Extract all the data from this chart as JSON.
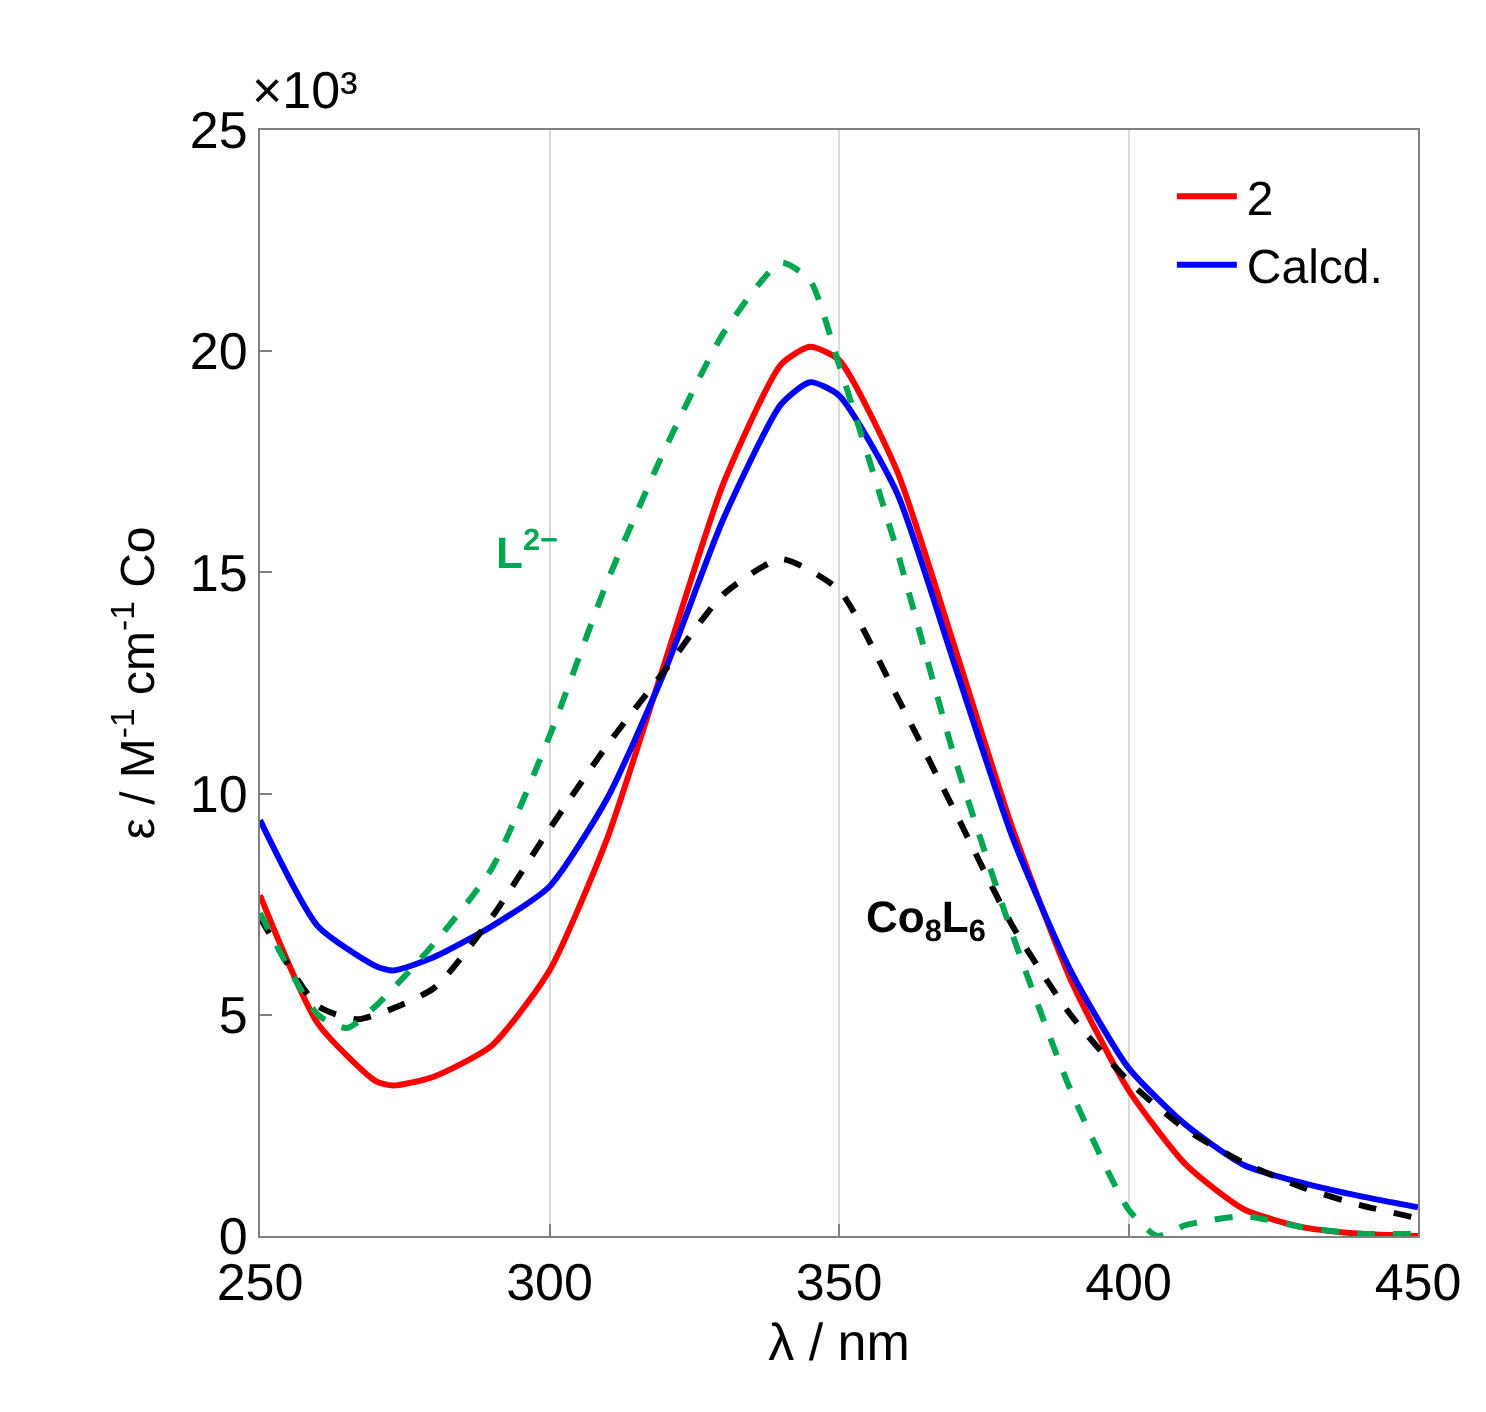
{
  "chart_data": {
    "type": "line",
    "xlabel": "λ / nm",
    "ylabel": "ε / M$^{-1}$ cm$^{-1}$ Co",
    "x": [
      250,
      260,
      270,
      273,
      280,
      290,
      300,
      310,
      320,
      330,
      340,
      345,
      350,
      360,
      370,
      380,
      390,
      400,
      410,
      420,
      430,
      440,
      450
    ],
    "series": [
      {
        "name": "2",
        "color": "#ff0000",
        "line_style": "solid",
        "values": [
          7.7,
          4.8,
          3.5,
          3.4,
          3.6,
          4.3,
          6.0,
          9.0,
          13.0,
          17.0,
          19.7,
          20.1,
          19.8,
          17.3,
          13.3,
          9.2,
          5.8,
          3.3,
          1.6,
          0.6,
          0.2,
          0.05,
          0.0
        ]
      },
      {
        "name": "Calcd.",
        "color": "#0000ff",
        "line_style": "solid",
        "values": [
          9.4,
          7.0,
          6.1,
          6.0,
          6.3,
          7.0,
          7.9,
          9.9,
          12.8,
          16.2,
          18.8,
          19.3,
          19.0,
          16.8,
          12.9,
          9.0,
          6.0,
          3.8,
          2.5,
          1.6,
          1.2,
          0.9,
          0.65
        ]
      },
      {
        "color": "#000000",
        "line_style": "dashed",
        "x": [
          250,
          260,
          267,
          280,
          290,
          300,
          310,
          320,
          330,
          340,
          350,
          360,
          370,
          380,
          390,
          400,
          410,
          420,
          430,
          440,
          450
        ],
        "values": [
          7.2,
          5.2,
          4.9,
          5.6,
          7.2,
          9.2,
          11.1,
          12.8,
          14.5,
          15.3,
          14.6,
          12.2,
          9.6,
          7.0,
          5.0,
          3.5,
          2.4,
          1.65,
          1.1,
          0.7,
          0.4
        ]
      },
      {
        "color": "#00a651",
        "line_style": "dashed",
        "x": [
          250,
          260,
          265,
          270,
          280,
          290,
          300,
          310,
          320,
          330,
          340,
          345,
          350,
          360,
          370,
          380,
          390,
          400,
          405,
          410,
          420,
          430,
          440,
          450
        ],
        "values": [
          7.3,
          5.0,
          4.7,
          5.2,
          6.6,
          8.3,
          11.3,
          14.8,
          17.8,
          20.4,
          22.0,
          21.6,
          19.7,
          15.5,
          10.8,
          6.8,
          3.3,
          0.6,
          0.0,
          0.25,
          0.45,
          0.2,
          0.05,
          0.05
        ]
      }
    ],
    "annotations": [
      "L$^{2−}$",
      "Co$_{8}$L$_{6}$",
      "×10³"
    ],
    "xlim": [
      250,
      450
    ],
    "xticks": [
      250,
      300,
      350,
      400,
      450
    ],
    "ylim": [
      0,
      25
    ],
    "yticks": [
      0,
      5,
      10,
      15,
      20,
      25
    ],
    "grid": "x",
    "legend": "top right"
  }
}
